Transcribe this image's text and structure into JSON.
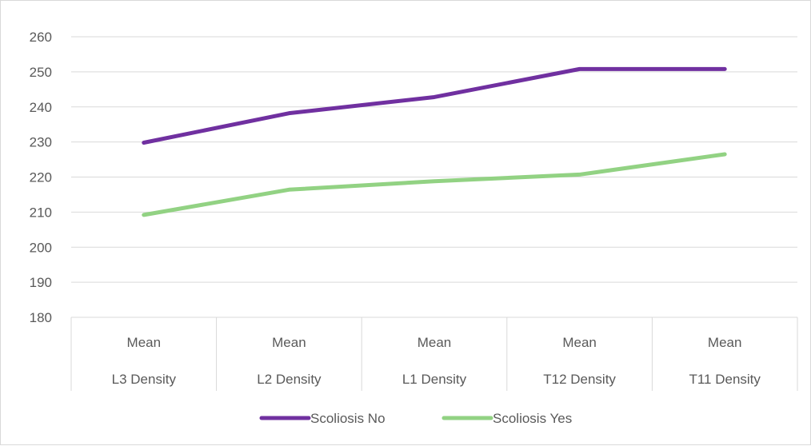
{
  "chart_data": {
    "type": "line",
    "title": "",
    "xlabel": "",
    "ylabel": "",
    "categories": [
      [
        "Mean",
        "L3 Density"
      ],
      [
        "Mean",
        "L2 Density"
      ],
      [
        "Mean",
        "L1 Density"
      ],
      [
        "Mean",
        "T12 Density"
      ],
      [
        "Mean",
        "T11 Density"
      ]
    ],
    "ylim": [
      180,
      260
    ],
    "yticks": [
      180,
      190,
      200,
      210,
      220,
      230,
      240,
      250,
      260
    ],
    "grid": true,
    "legend_position": "bottom",
    "series": [
      {
        "name": "Scoliosis No",
        "color": "#7030a0",
        "values": [
          229.8,
          238.2,
          242.8,
          250.8,
          250.8
        ]
      },
      {
        "name": "Scoliosis Yes",
        "color": "#92d283",
        "values": [
          209.2,
          216.4,
          218.8,
          220.7,
          226.5
        ]
      }
    ]
  }
}
